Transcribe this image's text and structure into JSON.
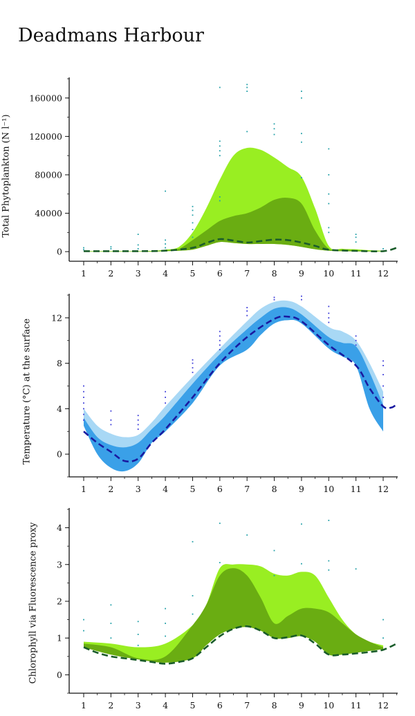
{
  "page": {
    "title": "Deadmans Harbour"
  },
  "chart_data": [
    {
      "type": "area",
      "ylabel": "Total Phytoplankton (N l⁻¹)",
      "x_ticks": [
        1,
        2,
        3,
        4,
        5,
        6,
        7,
        8,
        9,
        10,
        11,
        12
      ],
      "xlim": [
        0.7,
        12.5
      ],
      "ylim": [
        -10000,
        180000
      ],
      "y_ticks": [
        0,
        40000,
        80000,
        120000,
        160000
      ],
      "y_tick_labels": [
        "0",
        "40000",
        "80000",
        "120000",
        "160000"
      ],
      "colors": {
        "outer_band": "#99ee22",
        "inner_band": "#6aad12",
        "median": "#1a5c2a",
        "points": "#22a0a8"
      },
      "series": [
        {
          "x": [
            1,
            2,
            3,
            3.5,
            4,
            4.5,
            5,
            5.5,
            6,
            6.5,
            7,
            7.5,
            8,
            8.5,
            9,
            9.5,
            10,
            10.5,
            11,
            11.5,
            12
          ],
          "upper": [
            500,
            500,
            500,
            800,
            2000,
            5000,
            20000,
            45000,
            75000,
            100000,
            108000,
            106000,
            98000,
            88000,
            78000,
            45000,
            6000,
            3000,
            2500,
            1500,
            1000
          ],
          "lower": [
            0,
            0,
            0,
            0,
            500,
            1000,
            2000,
            6000,
            10000,
            9000,
            8000,
            8000,
            8000,
            7000,
            5000,
            2500,
            1000,
            500,
            300,
            200,
            100
          ]
        },
        {
          "x": [
            1,
            2,
            3,
            3.5,
            4,
            4.5,
            5,
            5.5,
            6,
            6.5,
            7,
            7.5,
            8,
            8.5,
            9,
            9.5,
            10,
            10.5,
            11,
            11.5,
            12
          ],
          "upper": [
            200,
            300,
            300,
            500,
            1500,
            3000,
            12000,
            22000,
            32000,
            37000,
            40000,
            46000,
            54000,
            56000,
            50000,
            22000,
            3000,
            2000,
            1500,
            800,
            500
          ],
          "lower": [
            0,
            0,
            0,
            0,
            500,
            1000,
            2000,
            6000,
            10000,
            9000,
            8000,
            8000,
            8000,
            7000,
            5000,
            2500,
            1000,
            500,
            300,
            200,
            100
          ]
        },
        {
          "x": [
            1,
            2,
            3,
            4,
            5,
            5.5,
            6,
            6.5,
            7,
            7.5,
            8,
            8.5,
            9,
            9.5,
            10,
            11,
            12,
            12.5
          ],
          "median": [
            500,
            500,
            500,
            1000,
            4000,
            9000,
            13000,
            11500,
            9500,
            11000,
            12500,
            12000,
            9500,
            6000,
            2000,
            800,
            500,
            4000
          ]
        }
      ],
      "points": [
        [
          1,
          4000
        ],
        [
          1,
          2000
        ],
        [
          2,
          5000
        ],
        [
          2,
          3000
        ],
        [
          3,
          18000
        ],
        [
          3,
          7000
        ],
        [
          3,
          3000
        ],
        [
          4,
          63000
        ],
        [
          4,
          12000
        ],
        [
          4,
          8000
        ],
        [
          4,
          4000
        ],
        [
          5,
          47000
        ],
        [
          5,
          43000
        ],
        [
          5,
          38000
        ],
        [
          5,
          30000
        ],
        [
          5,
          23000
        ],
        [
          5,
          15000
        ],
        [
          6,
          171000
        ],
        [
          6,
          115000
        ],
        [
          6,
          110000
        ],
        [
          6,
          105000
        ],
        [
          6,
          100000
        ],
        [
          6,
          57000
        ],
        [
          6,
          53000
        ],
        [
          7,
          174000
        ],
        [
          7,
          171000
        ],
        [
          7,
          167000
        ],
        [
          7,
          125000
        ],
        [
          8,
          133000
        ],
        [
          8,
          128000
        ],
        [
          8,
          122000
        ],
        [
          9,
          167000
        ],
        [
          9,
          160000
        ],
        [
          9,
          123000
        ],
        [
          9,
          114000
        ],
        [
          9,
          77000
        ],
        [
          10,
          107000
        ],
        [
          10,
          80000
        ],
        [
          10,
          60000
        ],
        [
          10,
          50000
        ],
        [
          10,
          25000
        ],
        [
          10,
          20000
        ],
        [
          11,
          18000
        ],
        [
          11,
          15000
        ],
        [
          11,
          10000
        ],
        [
          12,
          3000
        ]
      ]
    },
    {
      "type": "area",
      "ylabel": "Temperature (°C) at the surface",
      "x_ticks": [
        1,
        2,
        3,
        4,
        5,
        6,
        7,
        8,
        9,
        10,
        11,
        12
      ],
      "xlim": [
        0.7,
        12.5
      ],
      "ylim": [
        -2,
        14
      ],
      "y_ticks": [
        0,
        4,
        8,
        12
      ],
      "y_tick_labels": [
        "0",
        "4",
        "8",
        "12"
      ],
      "colors": {
        "outer_band": "#a8d8f5",
        "inner_band": "#3aa0e8",
        "median": "#1a1aa0",
        "points": "#3a3ad8"
      },
      "series": [
        {
          "x": [
            1,
            1.5,
            2,
            2.5,
            3,
            3.5,
            4,
            5,
            6,
            7,
            7.5,
            8,
            8.5,
            9,
            10,
            10.5,
            11,
            11.5,
            12
          ],
          "upper": [
            4,
            2.5,
            1.8,
            1.5,
            1.7,
            2.8,
            4.2,
            6.8,
            9.3,
            11.7,
            12.8,
            13.4,
            13.5,
            13,
            11.2,
            10.8,
            10,
            8,
            5.5
          ],
          "lower": [
            2.5,
            0,
            -1.2,
            -1.5,
            -0.8,
            1,
            2,
            4.5,
            7.8,
            9.2,
            10.5,
            11.5,
            11.8,
            11.5,
            9.3,
            8.6,
            7.8,
            4,
            2
          ],
          "lower_extra": [
            [
              11.7,
              3
            ],
            [
              12,
              1.5
            ]
          ]
        },
        {
          "x": [
            1,
            1.5,
            2,
            2.5,
            3,
            3.5,
            4,
            5,
            6,
            7,
            7.5,
            8,
            8.5,
            9,
            10,
            10.5,
            11,
            11.5,
            12
          ],
          "upper": [
            3.2,
            1.5,
            0.8,
            0.6,
            1,
            2.2,
            3.4,
            6.2,
            8.8,
            11,
            12,
            12.8,
            12.9,
            12.3,
            10.3,
            9.8,
            9.5,
            7.2,
            4.3
          ],
          "lower": [
            2.5,
            0,
            -1.2,
            -1.5,
            -0.8,
            1,
            2,
            4.5,
            7.8,
            9.2,
            10.5,
            11.5,
            11.8,
            11.5,
            9.3,
            8.6,
            7.8,
            4,
            2
          ]
        },
        {
          "x": [
            1,
            1.5,
            2,
            2.5,
            3,
            3.5,
            4,
            5,
            6,
            7,
            8,
            8.5,
            9,
            10,
            11,
            11.5,
            12,
            12.3,
            12.5
          ],
          "median": [
            2,
            1,
            0.2,
            -0.6,
            -0.4,
            1,
            2.2,
            5,
            8,
            10.3,
            11.9,
            12.1,
            11.7,
            9.6,
            7.8,
            5.8,
            4.2,
            4.1,
            4.4
          ]
        }
      ],
      "points": [
        [
          1,
          6
        ],
        [
          1,
          5.5
        ],
        [
          1,
          5
        ],
        [
          1,
          4.5
        ],
        [
          1,
          4
        ],
        [
          1,
          3.5
        ],
        [
          1,
          3
        ],
        [
          2,
          3.8
        ],
        [
          2,
          3
        ],
        [
          2,
          2.6
        ],
        [
          3,
          3.4
        ],
        [
          3,
          3
        ],
        [
          3,
          2.6
        ],
        [
          3,
          2.2
        ],
        [
          4,
          5.5
        ],
        [
          4,
          5
        ],
        [
          4,
          4.5
        ],
        [
          5,
          8.3
        ],
        [
          5,
          8
        ],
        [
          5,
          7.6
        ],
        [
          5,
          7.2
        ],
        [
          6,
          10.8
        ],
        [
          6,
          10.4
        ],
        [
          6,
          10
        ],
        [
          6,
          9.6
        ],
        [
          6,
          9.2
        ],
        [
          7,
          12.9
        ],
        [
          7,
          12.6
        ],
        [
          7,
          12.2
        ],
        [
          8,
          13.8
        ],
        [
          8,
          13.6
        ],
        [
          9,
          13.9
        ],
        [
          9,
          13.6
        ],
        [
          10,
          13
        ],
        [
          10,
          12.4
        ],
        [
          10,
          12
        ],
        [
          10,
          11.6
        ],
        [
          11,
          10.4
        ],
        [
          11,
          10
        ],
        [
          11,
          9.6
        ],
        [
          12,
          8.2
        ],
        [
          12,
          7.8
        ],
        [
          12,
          7
        ],
        [
          12,
          6
        ],
        [
          12,
          5
        ]
      ]
    },
    {
      "type": "area",
      "ylabel": "Chlorophyll via Fluorescence proxy",
      "x_ticks": [
        1,
        2,
        3,
        4,
        5,
        6,
        7,
        8,
        9,
        10,
        11,
        12
      ],
      "xlim": [
        0.7,
        12.5
      ],
      "ylim": [
        -0.5,
        4.5
      ],
      "y_ticks": [
        0,
        1,
        2,
        3,
        4
      ],
      "y_tick_labels": [
        "0",
        "1",
        "2",
        "3",
        "4"
      ],
      "colors": {
        "outer_band": "#99ee22",
        "inner_band": "#6aad12",
        "median": "#1a5c2a",
        "points": "#22a0a8"
      },
      "series": [
        {
          "x": [
            1,
            2,
            3,
            4,
            5,
            5.5,
            6,
            6.5,
            7,
            7.5,
            8,
            8.5,
            9,
            9.5,
            10,
            10.5,
            11,
            11.5,
            12
          ],
          "upper": [
            0.9,
            0.85,
            0.75,
            0.85,
            1.35,
            1.9,
            2.9,
            3.0,
            3.0,
            2.95,
            2.75,
            2.7,
            2.8,
            2.7,
            2.1,
            1.5,
            1.1,
            0.9,
            0.8
          ],
          "lower": [
            0.75,
            0.55,
            0.42,
            0.33,
            0.45,
            0.8,
            1.1,
            1.25,
            1.3,
            1.2,
            1.0,
            1.0,
            1.05,
            0.9,
            0.55,
            0.55,
            0.6,
            0.65,
            0.7
          ]
        },
        {
          "x": [
            1,
            2,
            3,
            4,
            5,
            5.5,
            6,
            6.5,
            7,
            7.5,
            8,
            8.5,
            9,
            9.5,
            10,
            10.5,
            11,
            11.5,
            12
          ],
          "upper": [
            0.85,
            0.75,
            0.45,
            0.5,
            1.35,
            1.9,
            2.7,
            2.9,
            2.7,
            2.1,
            1.4,
            1.6,
            1.8,
            1.8,
            1.7,
            1.4,
            1.1,
            0.9,
            0.75
          ],
          "lower": [
            0.75,
            0.55,
            0.42,
            0.33,
            0.45,
            0.8,
            1.1,
            1.25,
            1.3,
            1.2,
            1.0,
            1.0,
            1.05,
            0.9,
            0.55,
            0.55,
            0.6,
            0.65,
            0.7
          ]
        },
        {
          "x": [
            1,
            1.5,
            2,
            2.5,
            3,
            3.5,
            4,
            4.5,
            5,
            5.5,
            6,
            6.5,
            7,
            7.5,
            8,
            8.5,
            9,
            9.5,
            10,
            10.5,
            11,
            11.5,
            12,
            12.5
          ],
          "median": [
            0.75,
            0.6,
            0.5,
            0.45,
            0.4,
            0.35,
            0.3,
            0.35,
            0.45,
            0.75,
            1.05,
            1.25,
            1.32,
            1.2,
            1.0,
            1.02,
            1.07,
            0.85,
            0.55,
            0.55,
            0.58,
            0.62,
            0.68,
            0.85
          ]
        }
      ],
      "points": [
        [
          1,
          1.5
        ],
        [
          1,
          1.2
        ],
        [
          2,
          1.9
        ],
        [
          2,
          1.4
        ],
        [
          2,
          1.0
        ],
        [
          3,
          1.45
        ],
        [
          3,
          1.1
        ],
        [
          3,
          0.8
        ],
        [
          4,
          1.8
        ],
        [
          4,
          1.4
        ],
        [
          4,
          1.05
        ],
        [
          5,
          3.62
        ],
        [
          5,
          2.15
        ],
        [
          5,
          1.65
        ],
        [
          6,
          4.12
        ],
        [
          6,
          3.05
        ],
        [
          7,
          3.8
        ],
        [
          8,
          3.38
        ],
        [
          8,
          2.7
        ],
        [
          9,
          4.1
        ],
        [
          9,
          3.02
        ],
        [
          10,
          4.2
        ],
        [
          10,
          3.1
        ],
        [
          10,
          2.85
        ],
        [
          11,
          2.88
        ],
        [
          12,
          1.5
        ],
        [
          12,
          1.0
        ]
      ]
    }
  ]
}
